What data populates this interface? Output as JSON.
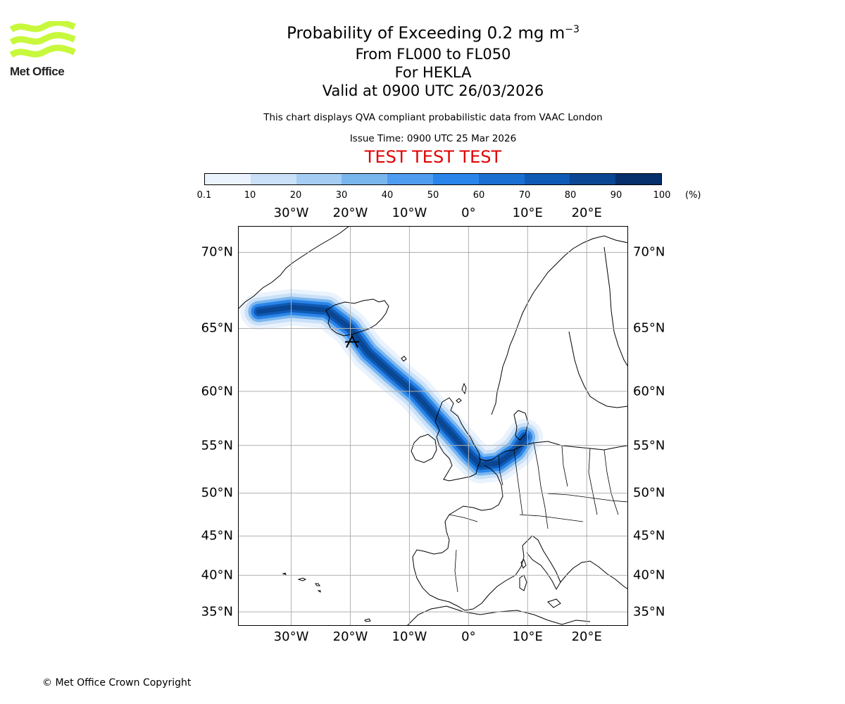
{
  "logo": {
    "text": "Met Office",
    "icon": "met-office-wave-logo",
    "color": "#c8f83c"
  },
  "title": {
    "main": "Probability of Exceeding 0.2 mg m",
    "main_superscript": "−3",
    "levels": "From FL000 to FL050",
    "volcano": "For HEKLA",
    "valid": "Valid at 0900 UTC 26/03/2026",
    "note": "This chart displays QVA compliant probabilistic data from VAAC London",
    "issue": "Issue Time: 0900 UTC 25 Mar 2026",
    "test_banner": "TEST TEST TEST"
  },
  "colorbar": {
    "ticks": [
      "0.1",
      "10",
      "20",
      "30",
      "40",
      "50",
      "60",
      "70",
      "80",
      "90",
      "100"
    ],
    "unit": "(%)",
    "colors": [
      "#eaf3fd",
      "#c9e0f8",
      "#a5cdf3",
      "#7ab6ee",
      "#4f9df0",
      "#2a85ea",
      "#1a6fd2",
      "#0f5ab5",
      "#0a4691",
      "#05306b"
    ]
  },
  "chart_data": {
    "type": "map",
    "projection": "cylindrical",
    "lon_range": [
      -39,
      27
    ],
    "lat_range": [
      33,
      71.5
    ],
    "lon_ticks": [
      -30,
      -20,
      -10,
      0,
      10,
      20
    ],
    "lon_tick_labels": [
      "30°W",
      "20°W",
      "10°W",
      "0°",
      "10°E",
      "20°E"
    ],
    "lat_ticks": [
      35,
      40,
      45,
      50,
      55,
      60,
      65,
      70
    ],
    "lat_tick_labels": [
      "35°N",
      "40°N",
      "45°N",
      "50°N",
      "55°N",
      "60°N",
      "65°N",
      "70°N"
    ],
    "source_marker": {
      "name": "HEKLA",
      "lon": -19.7,
      "lat": 64.0
    },
    "plume_track": [
      [
        -35.5,
        66.2
      ],
      [
        -30,
        66.5
      ],
      [
        -24,
        66.3
      ],
      [
        -20,
        65.0
      ],
      [
        -17,
        63.2
      ],
      [
        -13,
        61.5
      ],
      [
        -9,
        59.8
      ],
      [
        -6,
        58.0
      ],
      [
        -3,
        56.2
      ],
      [
        0,
        54.2
      ],
      [
        2,
        53.0
      ],
      [
        5,
        53.2
      ],
      [
        8,
        54.5
      ],
      [
        9.5,
        55.8
      ]
    ],
    "grid": true
  },
  "copyright": "© Met Office Crown Copyright"
}
